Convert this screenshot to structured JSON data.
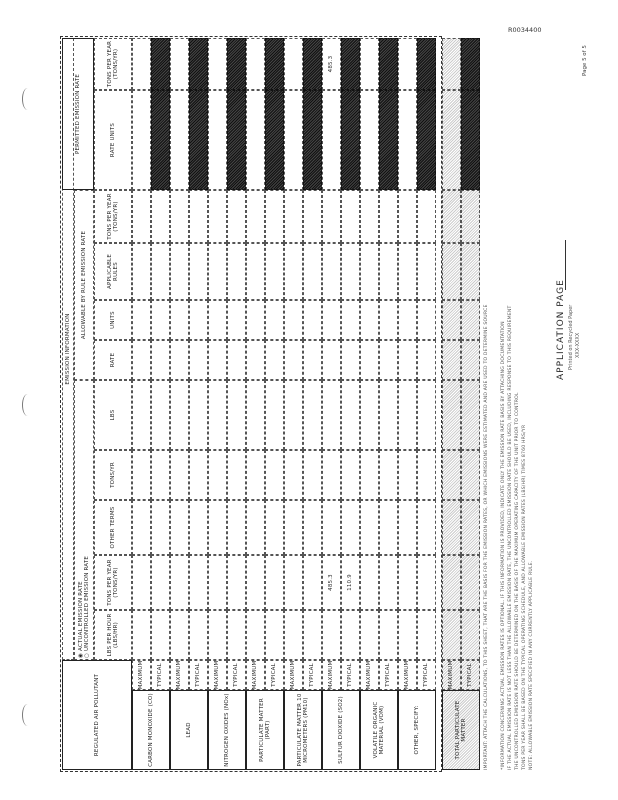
{
  "doc_id": "R0034400",
  "page_label": "Page 5 of 5",
  "table": {
    "title": "EMISSION INFORMATION",
    "pollutant_header": "REGULATED AIR POLLUTANT",
    "actual_option": "ACTUAL EMISSION RATE",
    "uncontrolled_option": "UNCONTROLLED EMISSION RATE",
    "allowable_header": "ALLOWABLE BY RULE EMISSION RATE",
    "permitted_header": "PERMITTED EMISSION RATE",
    "columns": [
      "LBS PER HOUR (LBS/HR)",
      "TONS PER YEAR (TONS/YR)",
      "OTHER TERMS",
      "TONS/YR",
      "LBS",
      "RATE",
      "UNITS",
      "APPLICABLE RULES",
      "TONS PER YEAR (TONS/YR)",
      "RATE  UNITS",
      "TONS PER YEAR (TONS/YR)"
    ],
    "basis": [
      "MAXIMUM",
      "TYPICAL"
    ],
    "pollutants": [
      {
        "name": "CARBON MONOXIDE (CO)",
        "values": [
          [
            "",
            "",
            "",
            "",
            "",
            "",
            "",
            "",
            "",
            "",
            ""
          ],
          [
            "",
            "",
            "",
            "",
            "",
            "",
            "",
            "",
            "",
            "",
            ""
          ]
        ]
      },
      {
        "name": "LEAD",
        "values": [
          [
            "",
            "",
            "",
            "",
            "",
            "",
            "",
            "",
            "",
            "",
            ""
          ],
          [
            "",
            "",
            "",
            "",
            "",
            "",
            "",
            "",
            "",
            "",
            ""
          ]
        ]
      },
      {
        "name": "NITROGEN OXIDES (NOx)",
        "values": [
          [
            "",
            "",
            "",
            "",
            "",
            "",
            "",
            "",
            "",
            "",
            ""
          ],
          [
            "",
            "",
            "",
            "",
            "",
            "",
            "",
            "",
            "",
            "",
            ""
          ]
        ]
      },
      {
        "name": "PARTICULATE MATTER (PART)",
        "values": [
          [
            "",
            "",
            "",
            "",
            "",
            "",
            "",
            "",
            "",
            "",
            ""
          ],
          [
            "",
            "",
            "",
            "",
            "",
            "",
            "",
            "",
            "",
            "",
            ""
          ]
        ]
      },
      {
        "name": "PARTICULATE MATTER 10 MICROMETERS (PM10)",
        "values": [
          [
            "",
            "",
            "",
            "",
            "",
            "",
            "",
            "",
            "",
            "",
            ""
          ],
          [
            "",
            "",
            "",
            "",
            "",
            "",
            "",
            "",
            "",
            "",
            ""
          ]
        ]
      },
      {
        "name": "SULFUR DIOXIDE (SO2)",
        "values": [
          [
            "",
            "485.3",
            "",
            "",
            "",
            "",
            "",
            "",
            "",
            "",
            "485.3"
          ],
          [
            "",
            "110.9",
            "",
            "",
            "",
            "",
            "",
            "",
            "",
            "",
            ""
          ]
        ]
      },
      {
        "name": "VOLATILE ORGANIC MATERIAL (VOM)",
        "values": [
          [
            "",
            "",
            "",
            "",
            "",
            "",
            "",
            "",
            "",
            "",
            ""
          ],
          [
            "",
            "",
            "",
            "",
            "",
            "",
            "",
            "",
            "",
            "",
            ""
          ]
        ]
      },
      {
        "name": "OTHER, SPECIFY:",
        "values": [
          [
            "",
            "",
            "",
            "",
            "",
            "",
            "",
            "",
            "",
            "",
            ""
          ],
          [
            "",
            "",
            "",
            "",
            "",
            "",
            "",
            "",
            "",
            "",
            ""
          ]
        ]
      }
    ],
    "total": {
      "name": "TOTAL PARTICULATE MATTER",
      "basis": [
        "MAXIMUM",
        "TYPICAL"
      ]
    }
  },
  "footnotes": [
    "IMPORTANT: ATTACH THE CALCULATIONS, TO THIS SHEET, THAT ARE THE BASIS FOR THE EMISSION RATES, OR WHICH EMISSIONS WERE ESTIMATED AND ARE USED TO DETERMINE SOURCE",
    "*INFORMATION CONCERNING ACTUAL EMISSION RATES IS OPTIONAL. IF THIS INFORMATION IS PROVIDED, INDICATE ONLY THE EMISSION RATE BASIS BY ATTACHING DOCUMENTATION",
    "IF THE ACTUAL EMISSION RATE IS NOT LESS THAN THE ALLOWABLE EMISSION RATE, THE UNCONTROLLED EMISSION RATE SHOULD BE USED, INCLUDING RESPONSE TO THIS REQUIREMENT",
    "THE UNCONTROLLED EMISSION RATE SHOULD BE DETERMINED ON THE BASIS OF THE MAXIMUM OPERATING CAPACITY OF THE UNIT PRIOR TO CONTROL",
    "TONS PER YEAR SHALL BE BASED ON THE TYPICAL OPERATING SCHEDULE, AND ALLOWABLE EMISSION RATES (LBS/HR) TIMES 8760 HRS/YR",
    "NOTE: ALLOWABLE EMISSION RATE SPECIFIED IN ANY CURRENTLY APPLICABLE RULE."
  ],
  "footer": {
    "title": "APPLICATION PAGE",
    "line1": "Printed on Recycled Paper",
    "line2": "XXX-XXXX"
  }
}
